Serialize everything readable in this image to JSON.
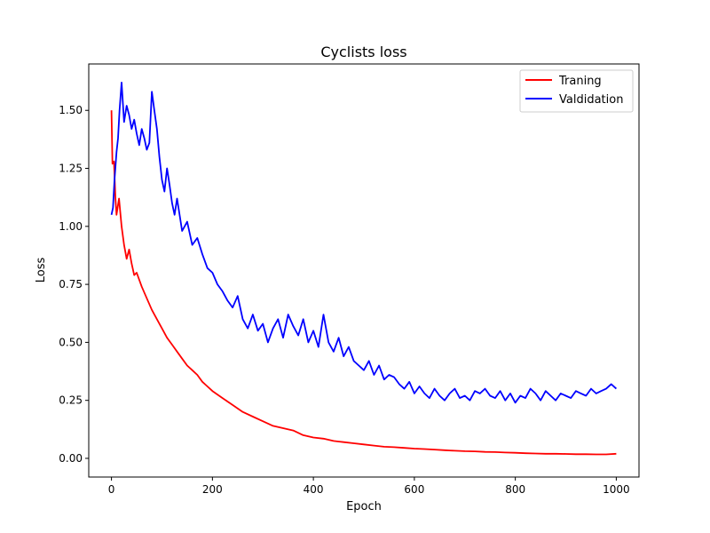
{
  "chart_data": {
    "type": "line",
    "title": "Cyclists loss",
    "xlabel": "Epoch",
    "ylabel": "Loss",
    "xlim": [
      -45,
      1045
    ],
    "ylim": [
      -0.0805,
      1.7
    ],
    "xticks": [
      0,
      200,
      400,
      600,
      800,
      1000
    ],
    "xtick_labels": [
      "0",
      "200",
      "400",
      "600",
      "800",
      "1000"
    ],
    "yticks": [
      0.0,
      0.25,
      0.5,
      0.75,
      1.0,
      1.25,
      1.5
    ],
    "ytick_labels": [
      "0.00",
      "0.25",
      "0.50",
      "0.75",
      "1.00",
      "1.25",
      "1.50"
    ],
    "grid": false,
    "legend_position": "top-right",
    "series": [
      {
        "name": "Traning",
        "color": "#ff0000",
        "x": [
          0,
          2,
          5,
          8,
          10,
          15,
          20,
          25,
          30,
          35,
          40,
          45,
          50,
          60,
          70,
          80,
          90,
          100,
          110,
          120,
          130,
          140,
          150,
          160,
          170,
          180,
          190,
          200,
          220,
          240,
          260,
          280,
          300,
          320,
          340,
          360,
          380,
          400,
          420,
          440,
          460,
          480,
          500,
          520,
          540,
          560,
          580,
          600,
          620,
          640,
          660,
          680,
          700,
          720,
          740,
          760,
          780,
          800,
          820,
          840,
          860,
          880,
          900,
          920,
          940,
          960,
          980,
          1000
        ],
        "y": [
          1.5,
          1.27,
          1.28,
          1.12,
          1.05,
          1.12,
          1.0,
          0.92,
          0.86,
          0.9,
          0.84,
          0.79,
          0.8,
          0.74,
          0.69,
          0.64,
          0.6,
          0.56,
          0.52,
          0.49,
          0.46,
          0.43,
          0.4,
          0.38,
          0.36,
          0.33,
          0.31,
          0.29,
          0.26,
          0.23,
          0.2,
          0.18,
          0.16,
          0.14,
          0.13,
          0.12,
          0.1,
          0.09,
          0.085,
          0.075,
          0.07,
          0.065,
          0.06,
          0.055,
          0.05,
          0.048,
          0.045,
          0.042,
          0.04,
          0.038,
          0.035,
          0.033,
          0.031,
          0.03,
          0.028,
          0.027,
          0.025,
          0.024,
          0.022,
          0.021,
          0.02,
          0.02,
          0.019,
          0.018,
          0.018,
          0.017,
          0.017,
          0.02
        ]
      },
      {
        "name": "Valdidation",
        "color": "#0000ff",
        "x": [
          0,
          3,
          6,
          10,
          13,
          16,
          20,
          25,
          30,
          35,
          40,
          45,
          50,
          55,
          60,
          65,
          70,
          75,
          80,
          85,
          90,
          95,
          100,
          105,
          110,
          115,
          120,
          125,
          130,
          140,
          150,
          160,
          170,
          180,
          190,
          200,
          210,
          220,
          230,
          240,
          250,
          260,
          270,
          280,
          290,
          300,
          310,
          320,
          330,
          340,
          350,
          360,
          370,
          380,
          390,
          400,
          410,
          420,
          430,
          440,
          450,
          460,
          470,
          480,
          490,
          500,
          510,
          520,
          530,
          540,
          550,
          560,
          570,
          580,
          590,
          600,
          610,
          620,
          630,
          640,
          650,
          660,
          670,
          680,
          690,
          700,
          710,
          720,
          730,
          740,
          750,
          760,
          770,
          780,
          790,
          800,
          810,
          820,
          830,
          840,
          850,
          860,
          870,
          880,
          890,
          900,
          910,
          920,
          930,
          940,
          950,
          960,
          970,
          980,
          990,
          1000
        ],
        "y": [
          1.05,
          1.08,
          1.2,
          1.32,
          1.38,
          1.5,
          1.62,
          1.45,
          1.52,
          1.48,
          1.42,
          1.46,
          1.4,
          1.35,
          1.42,
          1.38,
          1.33,
          1.36,
          1.58,
          1.5,
          1.42,
          1.3,
          1.2,
          1.15,
          1.25,
          1.18,
          1.1,
          1.05,
          1.12,
          0.98,
          1.02,
          0.92,
          0.95,
          0.88,
          0.82,
          0.8,
          0.75,
          0.72,
          0.68,
          0.65,
          0.7,
          0.6,
          0.56,
          0.62,
          0.55,
          0.58,
          0.5,
          0.56,
          0.6,
          0.52,
          0.62,
          0.57,
          0.53,
          0.6,
          0.5,
          0.55,
          0.48,
          0.62,
          0.5,
          0.46,
          0.52,
          0.44,
          0.48,
          0.42,
          0.4,
          0.38,
          0.42,
          0.36,
          0.4,
          0.34,
          0.36,
          0.35,
          0.32,
          0.3,
          0.33,
          0.28,
          0.31,
          0.28,
          0.26,
          0.3,
          0.27,
          0.25,
          0.28,
          0.3,
          0.26,
          0.27,
          0.25,
          0.29,
          0.28,
          0.3,
          0.27,
          0.26,
          0.29,
          0.25,
          0.28,
          0.24,
          0.27,
          0.26,
          0.3,
          0.28,
          0.25,
          0.29,
          0.27,
          0.25,
          0.28,
          0.27,
          0.26,
          0.29,
          0.28,
          0.27,
          0.3,
          0.28,
          0.29,
          0.3,
          0.32,
          0.3
        ]
      }
    ]
  }
}
